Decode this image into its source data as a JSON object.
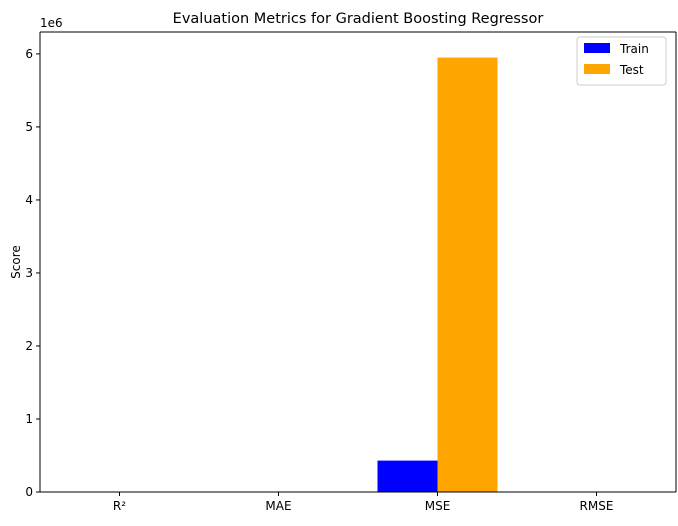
{
  "chart_data": {
    "type": "bar",
    "title": "Evaluation Metrics for Gradient Boosting Regressor",
    "xlabel": "",
    "ylabel": "Score",
    "y_offset_label": "1e6",
    "y_scale": 1000000,
    "categories": [
      "R²",
      "MAE",
      "MSE",
      "RMSE"
    ],
    "ylim": [
      0,
      6300000
    ],
    "yticks": [
      0,
      1000000,
      2000000,
      3000000,
      4000000,
      5000000,
      6000000
    ],
    "ytick_labels": [
      "0",
      "1",
      "2",
      "3",
      "4",
      "5",
      "6"
    ],
    "series": [
      {
        "name": "Train",
        "color": "#0000ff",
        "values": [
          0.99,
          350,
          430000,
          656
        ]
      },
      {
        "name": "Test",
        "color": "#ffa500",
        "values": [
          0.89,
          1500,
          5950000,
          2440
        ]
      }
    ],
    "legend_position": "top-right",
    "grid": false
  }
}
